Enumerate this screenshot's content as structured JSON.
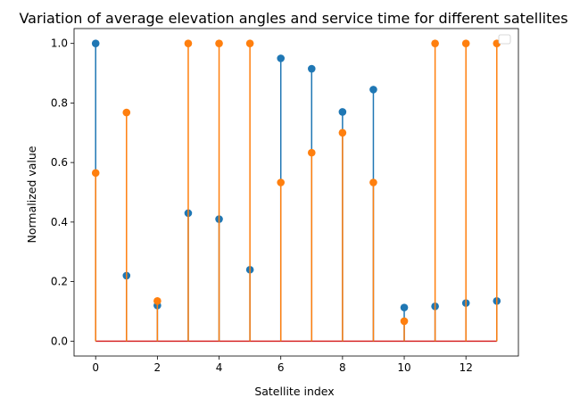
{
  "chart_data": {
    "type": "stem",
    "title": "Variation of average elevation angles and service time for different satellites",
    "xlabel": "Satellite index",
    "ylabel": "Normalized value",
    "xlim": [
      -0.7,
      13.7
    ],
    "ylim": [
      -0.05,
      1.05
    ],
    "x": [
      0,
      1,
      2,
      3,
      4,
      5,
      6,
      7,
      8,
      9,
      10,
      11,
      12,
      13
    ],
    "xticks": [
      0,
      2,
      4,
      6,
      8,
      10,
      12
    ],
    "xtick_labels": [
      "0",
      "2",
      "4",
      "6",
      "8",
      "10",
      "12"
    ],
    "yticks": [
      0.0,
      0.2,
      0.4,
      0.6,
      0.8,
      1.0
    ],
    "ytick_labels": [
      "0.0",
      "0.2",
      "0.4",
      "0.6",
      "0.8",
      "1.0"
    ],
    "baseline": 0,
    "baseline_color": "#d62728",
    "grid": false,
    "legend": {
      "location": "upper right",
      "entries": []
    },
    "series": [
      {
        "color": "#1f77b4",
        "values": [
          1.0,
          0.22,
          0.12,
          0.43,
          0.41,
          0.24,
          0.95,
          0.915,
          0.77,
          0.845,
          0.113,
          0.117,
          0.128,
          0.135
        ]
      },
      {
        "color": "#ff7f0e",
        "values": [
          0.565,
          0.768,
          0.135,
          1.0,
          1.0,
          1.0,
          0.533,
          0.633,
          0.7,
          0.533,
          0.067,
          1.0,
          1.0,
          1.0
        ]
      }
    ]
  }
}
